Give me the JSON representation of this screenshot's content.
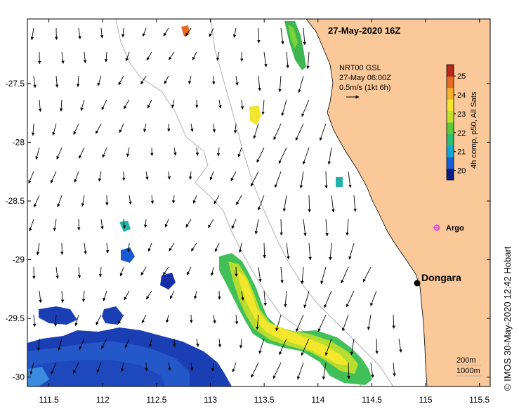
{
  "title": "27-May-2020 16Z",
  "product": {
    "line1": "NRT00 GSL",
    "line2": "27-May 06:00Z",
    "line3": "0.5m/s (1kt 6h)"
  },
  "colorbar": {
    "label": "4h comp, p50, All Sats",
    "min": 19.5,
    "max": 25.6,
    "ticks": [
      "20",
      "21",
      "22",
      "23",
      "24",
      "25"
    ],
    "colors": [
      "#0b1d86",
      "#1560d8",
      "#13a8d8",
      "#2bbf6f",
      "#5cc93a",
      "#c3e22a",
      "#f2e72c",
      "#f4b22a",
      "#e66a1f",
      "#b8271c"
    ]
  },
  "axes": {
    "x_ticks": [
      "111.5",
      "112",
      "112.5",
      "113",
      "113.5",
      "114",
      "114.5",
      "115",
      "115.5"
    ],
    "y_ticks": [
      "-27.5",
      "-28",
      "-28.5",
      "-29",
      "-29.5",
      "-30"
    ],
    "lon_range": [
      111.3,
      115.6
    ],
    "lat_range": [
      -30.08,
      -26.95
    ]
  },
  "places": {
    "dongara": "Dongara",
    "argo": "Argo"
  },
  "legend_scale": {
    "line1": "200m",
    "line2": "1000m"
  },
  "credit": "© IMOS 30-May-2020 12:42 Hobart",
  "colors": {
    "land": "#fac899",
    "ocean": "#ffffff",
    "argo_marker": "#e040e0"
  },
  "icons": [
    "north-arrow-icon",
    "argo-float-marker-icon",
    "town-marker-icon"
  ]
}
